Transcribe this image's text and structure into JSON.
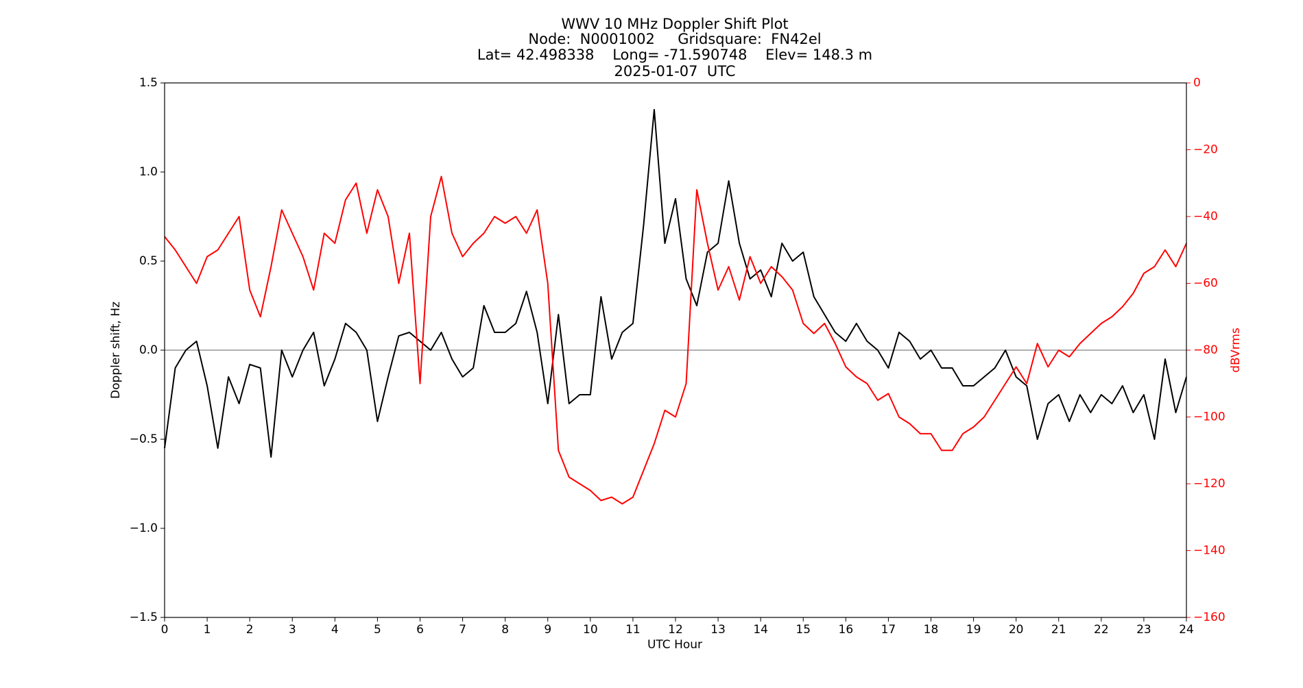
{
  "chart_data": {
    "type": "line",
    "title": [
      "WWV 10 MHz Doppler Shift Plot",
      "Node:  N0001002     Gridsquare:  FN42el",
      "Lat= 42.498338    Long= -71.590748    Elev= 148.3 m",
      "2025-01-07  UTC"
    ],
    "x_label": "UTC Hour",
    "y_label": "Doppler shift, Hz",
    "y2_label": "dBVrms",
    "y2_color": "#ff0000",
    "xlim": [
      0,
      24
    ],
    "xticks": [
      0,
      1,
      2,
      3,
      4,
      5,
      6,
      7,
      8,
      9,
      10,
      11,
      12,
      13,
      14,
      15,
      16,
      17,
      18,
      19,
      20,
      21,
      22,
      23,
      24
    ],
    "ylim": [
      -1.5,
      1.5
    ],
    "yticks": [
      {
        "value": -1.5,
        "label": "−1.5"
      },
      {
        "value": -1.0,
        "label": "−1.0"
      },
      {
        "value": -0.5,
        "label": "−0.5"
      },
      {
        "value": 0,
        "label": "0.0"
      },
      0.5,
      {
        "value": 1.0,
        "label": "1.0"
      },
      1.5
    ],
    "y2lim": [
      -160,
      0
    ],
    "y2ticks": [
      {
        "value": -160,
        "label": "−160"
      },
      {
        "value": -140,
        "label": "−140"
      },
      {
        "value": -120,
        "label": "−120"
      },
      {
        "value": -100,
        "label": "−100"
      },
      {
        "value": -80,
        "label": "−80"
      },
      {
        "value": -60,
        "label": "−60"
      },
      {
        "value": -40,
        "label": "−40"
      },
      {
        "value": -20,
        "label": "−20"
      },
      0
    ],
    "zero_line": 0,
    "x": [
      0,
      0.25,
      0.5,
      0.75,
      1,
      1.25,
      1.5,
      1.75,
      2,
      2.25,
      2.5,
      2.75,
      3,
      3.25,
      3.5,
      3.75,
      4,
      4.25,
      4.5,
      4.75,
      5,
      5.25,
      5.5,
      5.75,
      6,
      6.25,
      6.5,
      6.75,
      7,
      7.25,
      7.5,
      7.75,
      8,
      8.25,
      8.5,
      8.75,
      9,
      9.25,
      9.5,
      9.75,
      10,
      10.25,
      10.5,
      10.75,
      11,
      11.25,
      11.5,
      11.75,
      12,
      12.25,
      12.5,
      12.75,
      13,
      13.25,
      13.5,
      13.75,
      14,
      14.25,
      14.5,
      14.75,
      15,
      15.25,
      15.5,
      15.75,
      16,
      16.25,
      16.5,
      16.75,
      17,
      17.25,
      17.5,
      17.75,
      18,
      18.25,
      18.5,
      18.75,
      19,
      19.25,
      19.5,
      19.75,
      20,
      20.25,
      20.5,
      20.75,
      21,
      21.25,
      21.5,
      21.75,
      22,
      22.25,
      22.5,
      22.75,
      23,
      23.25,
      23.5,
      23.75,
      24
    ],
    "series": [
      {
        "color": "#000000",
        "values": [
          -0.55,
          -0.1,
          0.0,
          0.05,
          -0.2,
          -0.55,
          -0.15,
          -0.3,
          -0.08,
          -0.1,
          -0.6,
          0.0,
          -0.15,
          0.0,
          0.1,
          -0.2,
          -0.05,
          0.15,
          0.1,
          0.0,
          -0.4,
          -0.15,
          0.08,
          0.1,
          0.05,
          0.0,
          0.1,
          -0.05,
          -0.15,
          -0.1,
          0.25,
          0.1,
          0.1,
          0.15,
          0.33,
          0.1,
          -0.3,
          0.2,
          -0.3,
          -0.25,
          -0.25,
          0.3,
          -0.05,
          0.1,
          0.15,
          0.7,
          1.35,
          0.6,
          0.85,
          0.4,
          0.25,
          0.55,
          0.6,
          0.95,
          0.6,
          0.4,
          0.45,
          0.3,
          0.6,
          0.5,
          0.55,
          0.3,
          0.2,
          0.1,
          0.05,
          0.15,
          0.05,
          0.0,
          -0.1,
          0.1,
          0.05,
          -0.05,
          0.0,
          -0.1,
          -0.1,
          -0.2,
          -0.2,
          -0.15,
          -0.1,
          0.0,
          -0.15,
          -0.2,
          -0.5,
          -0.3,
          -0.25,
          -0.4,
          -0.25,
          -0.35,
          -0.25,
          -0.3,
          -0.2,
          -0.35,
          -0.25,
          -0.5,
          -0.05,
          -0.35,
          -0.15
        ]
      },
      {
        "color": "#ff0000",
        "axis": "y2",
        "values": [
          -46,
          -50,
          -55,
          -60,
          -52,
          -50,
          -45,
          -40,
          -62,
          -70,
          -55,
          -38,
          -45,
          -52,
          -62,
          -45,
          -48,
          -35,
          -30,
          -45,
          -32,
          -40,
          -60,
          -45,
          -90,
          -40,
          -28,
          -45,
          -52,
          -48,
          -45,
          -40,
          -42,
          -40,
          -45,
          -38,
          -60,
          -110,
          -118,
          -120,
          -122,
          -125,
          -124,
          -126,
          -124,
          -116,
          -108,
          -98,
          -100,
          -90,
          -32,
          -48,
          -62,
          -55,
          -65,
          -52,
          -60,
          -55,
          -58,
          -62,
          -72,
          -75,
          -72,
          -78,
          -85,
          -88,
          -90,
          -95,
          -93,
          -100,
          -102,
          -105,
          -105,
          -110,
          -110,
          -105,
          -103,
          -100,
          -95,
          -90,
          -85,
          -90,
          -78,
          -85,
          -80,
          -82,
          -78,
          -75,
          -72,
          -70,
          -67,
          -63,
          -57,
          -55,
          -50,
          -55,
          -48
        ]
      }
    ]
  }
}
